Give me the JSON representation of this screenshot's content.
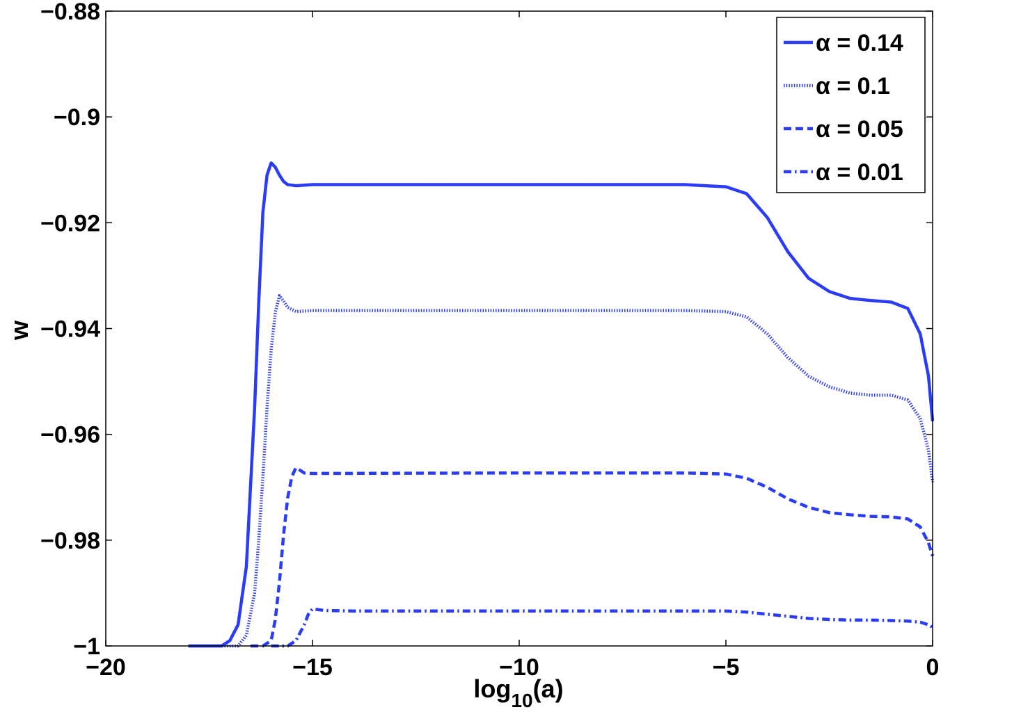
{
  "chart_data": {
    "type": "line",
    "xlabel": "log",
    "xlabel_sub": "10",
    "xlabel_rest": "(a)",
    "ylabel": "w",
    "xlim": [
      -20,
      0
    ],
    "ylim": [
      -1,
      -0.88
    ],
    "x_ticks": [
      -20,
      -15,
      -10,
      -5,
      0
    ],
    "x_tick_labels": [
      "−20",
      "−15",
      "−10",
      "−5",
      "0"
    ],
    "y_ticks": [
      -1,
      -0.98,
      -0.96,
      -0.94,
      -0.92,
      -0.9,
      -0.88
    ],
    "y_tick_labels": [
      "−1",
      "−0.98",
      "−0.96",
      "−0.94",
      "−0.92",
      "−0.9",
      "−0.88"
    ],
    "grid": false,
    "legend_position": "top-right",
    "color": "#2a3cf5",
    "series": [
      {
        "name": "α = 0.14",
        "style": "solid",
        "points": [
          [
            -18,
            -1
          ],
          [
            -17.2,
            -1
          ],
          [
            -17,
            -0.999
          ],
          [
            -16.8,
            -0.996
          ],
          [
            -16.6,
            -0.985
          ],
          [
            -16.5,
            -0.97
          ],
          [
            -16.4,
            -0.955
          ],
          [
            -16.3,
            -0.935
          ],
          [
            -16.2,
            -0.918
          ],
          [
            -16.1,
            -0.911
          ],
          [
            -16.0,
            -0.9087
          ],
          [
            -15.9,
            -0.9095
          ],
          [
            -15.8,
            -0.911
          ],
          [
            -15.7,
            -0.9122
          ],
          [
            -15.6,
            -0.9128
          ],
          [
            -15.4,
            -0.913
          ],
          [
            -15,
            -0.9128
          ],
          [
            -10,
            -0.9128
          ],
          [
            -6,
            -0.9128
          ],
          [
            -5,
            -0.9132
          ],
          [
            -4.5,
            -0.9145
          ],
          [
            -4,
            -0.919
          ],
          [
            -3.5,
            -0.9255
          ],
          [
            -3,
            -0.9305
          ],
          [
            -2.5,
            -0.933
          ],
          [
            -2,
            -0.9343
          ],
          [
            -1.5,
            -0.9347
          ],
          [
            -1,
            -0.935
          ],
          [
            -0.6,
            -0.9362
          ],
          [
            -0.3,
            -0.941
          ],
          [
            -0.1,
            -0.949
          ],
          [
            0,
            -0.9575
          ]
        ]
      },
      {
        "name": "α = 0.1",
        "style": "dotted",
        "points": [
          [
            -18,
            -1
          ],
          [
            -16.8,
            -1
          ],
          [
            -16.6,
            -0.998
          ],
          [
            -16.4,
            -0.99
          ],
          [
            -16.3,
            -0.98
          ],
          [
            -16.2,
            -0.968
          ],
          [
            -16.1,
            -0.955
          ],
          [
            -16.0,
            -0.944
          ],
          [
            -15.9,
            -0.937
          ],
          [
            -15.8,
            -0.9338
          ],
          [
            -15.7,
            -0.9348
          ],
          [
            -15.6,
            -0.936
          ],
          [
            -15.4,
            -0.9368
          ],
          [
            -15,
            -0.9366
          ],
          [
            -10,
            -0.9366
          ],
          [
            -6,
            -0.9366
          ],
          [
            -5,
            -0.9368
          ],
          [
            -4.5,
            -0.9378
          ],
          [
            -4,
            -0.941
          ],
          [
            -3.5,
            -0.9455
          ],
          [
            -3,
            -0.949
          ],
          [
            -2.5,
            -0.951
          ],
          [
            -2,
            -0.9522
          ],
          [
            -1.5,
            -0.9526
          ],
          [
            -1,
            -0.9526
          ],
          [
            -0.6,
            -0.9535
          ],
          [
            -0.3,
            -0.957
          ],
          [
            -0.1,
            -0.963
          ],
          [
            0,
            -0.969
          ]
        ]
      },
      {
        "name": "α = 0.05",
        "style": "dashed",
        "points": [
          [
            -16.5,
            -1
          ],
          [
            -16.2,
            -1
          ],
          [
            -16,
            -0.999
          ],
          [
            -15.9,
            -0.995
          ],
          [
            -15.8,
            -0.988
          ],
          [
            -15.7,
            -0.979
          ],
          [
            -15.6,
            -0.972
          ],
          [
            -15.5,
            -0.968
          ],
          [
            -15.4,
            -0.9663
          ],
          [
            -15.3,
            -0.9668
          ],
          [
            -15.2,
            -0.9673
          ],
          [
            -15,
            -0.9674
          ],
          [
            -10,
            -0.9673
          ],
          [
            -6,
            -0.9673
          ],
          [
            -5,
            -0.9675
          ],
          [
            -4.5,
            -0.9683
          ],
          [
            -4,
            -0.97
          ],
          [
            -3.5,
            -0.9722
          ],
          [
            -3,
            -0.9738
          ],
          [
            -2.5,
            -0.9748
          ],
          [
            -2,
            -0.9752
          ],
          [
            -1.5,
            -0.9755
          ],
          [
            -1,
            -0.9756
          ],
          [
            -0.6,
            -0.976
          ],
          [
            -0.3,
            -0.9775
          ],
          [
            -0.1,
            -0.9805
          ],
          [
            0,
            -0.983
          ]
        ]
      },
      {
        "name": "α = 0.01",
        "style": "dashdot",
        "points": [
          [
            -16,
            -1
          ],
          [
            -15.6,
            -1
          ],
          [
            -15.4,
            -0.999
          ],
          [
            -15.2,
            -0.996
          ],
          [
            -15.1,
            -0.994
          ],
          [
            -15.0,
            -0.993
          ],
          [
            -14.9,
            -0.9931
          ],
          [
            -14.7,
            -0.9933
          ],
          [
            -14,
            -0.9934
          ],
          [
            -10,
            -0.9934
          ],
          [
            -6,
            -0.9934
          ],
          [
            -5,
            -0.9934
          ],
          [
            -4.5,
            -0.9936
          ],
          [
            -4,
            -0.994
          ],
          [
            -3.5,
            -0.9944
          ],
          [
            -3,
            -0.9948
          ],
          [
            -2.5,
            -0.995
          ],
          [
            -2,
            -0.9951
          ],
          [
            -1.5,
            -0.9951
          ],
          [
            -1,
            -0.9952
          ],
          [
            -0.6,
            -0.9953
          ],
          [
            -0.3,
            -0.9955
          ],
          [
            -0.1,
            -0.996
          ],
          [
            0,
            -0.9965
          ]
        ]
      }
    ]
  }
}
